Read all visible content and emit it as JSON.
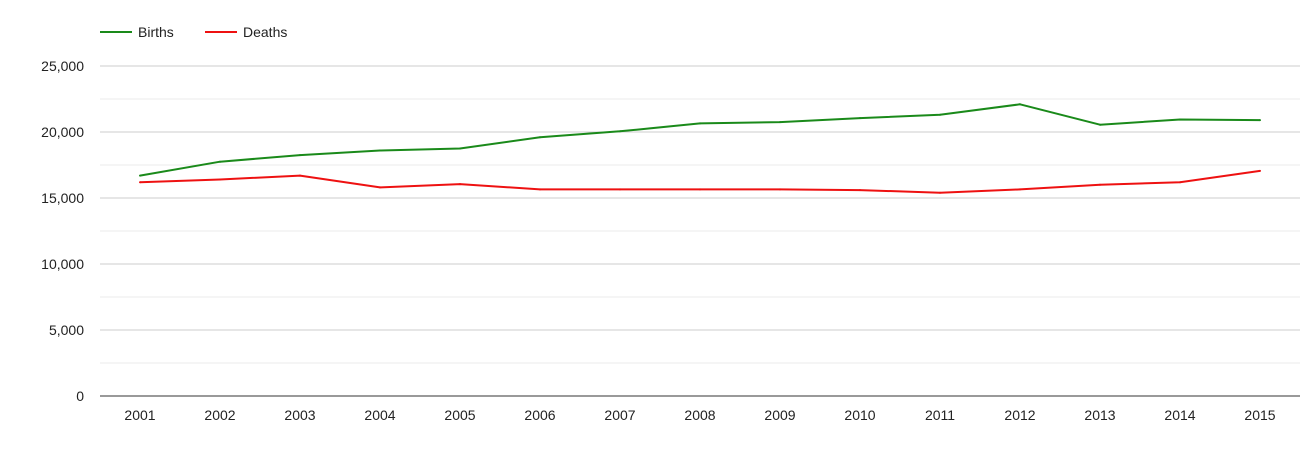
{
  "chart_data": {
    "type": "line",
    "title": "",
    "xlabel": "",
    "ylabel": "",
    "categories": [
      "2001",
      "2002",
      "2003",
      "2004",
      "2005",
      "2006",
      "2007",
      "2008",
      "2009",
      "2010",
      "2011",
      "2012",
      "2013",
      "2014",
      "2015"
    ],
    "ylim": [
      0,
      25000
    ],
    "yticks": [
      0,
      5000,
      10000,
      15000,
      20000,
      25000
    ],
    "ytick_labels": [
      "0",
      "5,000",
      "10,000",
      "15,000",
      "20,000",
      "25,000"
    ],
    "grid": true,
    "legend_position": "top-left",
    "series": [
      {
        "name": "Births",
        "color": "#1a8a1a",
        "values": [
          16700,
          17750,
          18250,
          18600,
          18750,
          19600,
          20050,
          20650,
          20750,
          21050,
          21300,
          22100,
          20550,
          20950,
          20900
        ]
      },
      {
        "name": "Deaths",
        "color": "#ee1111",
        "values": [
          16200,
          16400,
          16700,
          15800,
          16050,
          15650,
          15650,
          15650,
          15650,
          15600,
          15400,
          15650,
          16000,
          16200,
          17050
        ]
      }
    ]
  }
}
